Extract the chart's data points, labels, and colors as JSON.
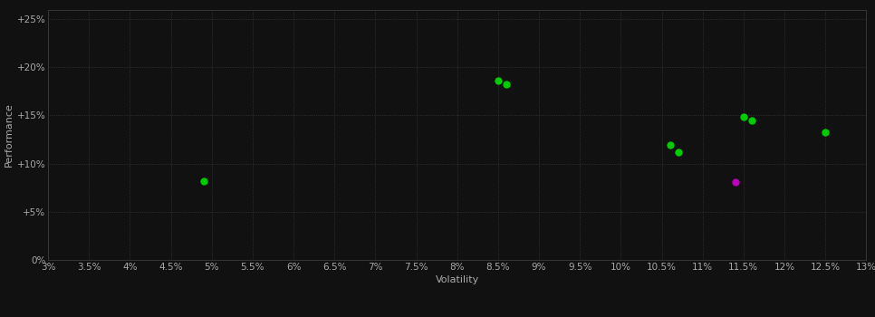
{
  "background_color": "#111111",
  "grid_color": "#444444",
  "xlabel": "Volatility",
  "ylabel": "Performance",
  "xlim": [
    0.03,
    0.13
  ],
  "ylim": [
    0.0,
    0.26
  ],
  "xticks": [
    0.03,
    0.035,
    0.04,
    0.045,
    0.05,
    0.055,
    0.06,
    0.065,
    0.07,
    0.075,
    0.08,
    0.085,
    0.09,
    0.095,
    0.1,
    0.105,
    0.11,
    0.115,
    0.12,
    0.125,
    0.13
  ],
  "yticks": [
    0.0,
    0.05,
    0.1,
    0.15,
    0.2,
    0.25
  ],
  "ytick_labels": [
    "0%",
    "+5%",
    "+10%",
    "+15%",
    "+20%",
    "+25%"
  ],
  "xtick_labels": [
    "3%",
    "3.5%",
    "4%",
    "4.5%",
    "5%",
    "5.5%",
    "6%",
    "6.5%",
    "7%",
    "7.5%",
    "8%",
    "8.5%",
    "9%",
    "9.5%",
    "10%",
    "10.5%",
    "11%",
    "11.5%",
    "12%",
    "12.5%",
    "13%"
  ],
  "points_green": [
    [
      0.049,
      0.082
    ],
    [
      0.085,
      0.186
    ],
    [
      0.086,
      0.182
    ],
    [
      0.106,
      0.119
    ],
    [
      0.107,
      0.112
    ],
    [
      0.115,
      0.149
    ],
    [
      0.116,
      0.145
    ],
    [
      0.125,
      0.133
    ]
  ],
  "points_magenta": [
    [
      0.114,
      0.081
    ]
  ],
  "green_color": "#00cc00",
  "magenta_color": "#bb00bb",
  "marker_size": 6,
  "tick_label_color": "#aaaaaa",
  "axis_label_color": "#aaaaaa",
  "label_fontsize": 8,
  "tick_fontsize": 7.5
}
